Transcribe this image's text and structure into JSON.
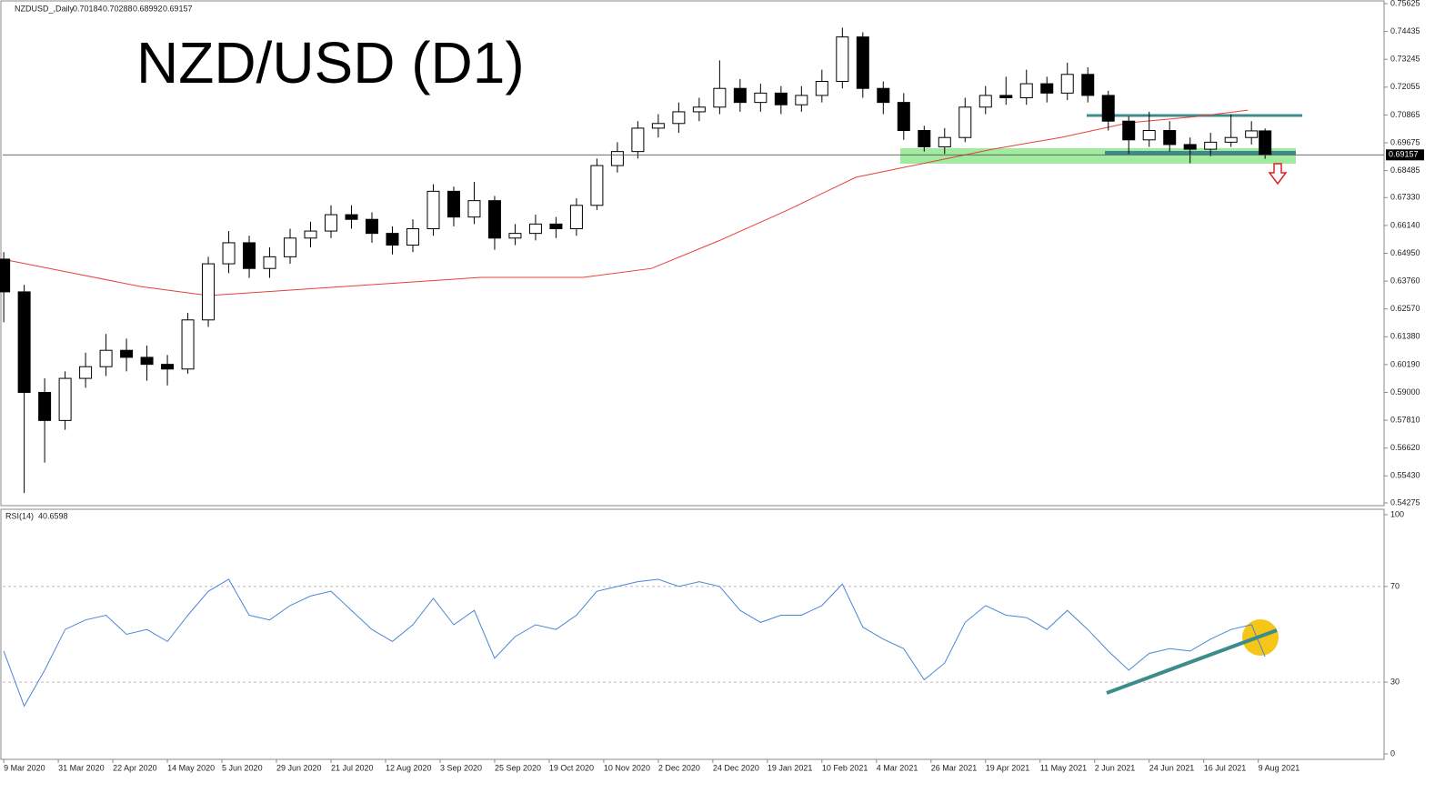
{
  "chart_data": [
    {
      "type": "candlestick",
      "title": "NZD/USD (D1)",
      "symbol_label": "NZDUSD_,Daily",
      "x": [
        0,
        6,
        12,
        18,
        24,
        30,
        36,
        42,
        48,
        54,
        60,
        66,
        72,
        78,
        84,
        90,
        96,
        102,
        108,
        114,
        120,
        126,
        132,
        138,
        144,
        150,
        156,
        162,
        168,
        174,
        180,
        186,
        192,
        198,
        204,
        210,
        216,
        222,
        228,
        234,
        240,
        246,
        252,
        258,
        264,
        270,
        276,
        282,
        288,
        294,
        300,
        306,
        312,
        318,
        324,
        330,
        336,
        342,
        348,
        354,
        360,
        366,
        370
      ],
      "open": [
        0.647,
        0.633,
        0.59,
        0.578,
        0.596,
        0.601,
        0.608,
        0.605,
        0.602,
        0.6,
        0.621,
        0.645,
        0.654,
        0.643,
        0.648,
        0.656,
        0.659,
        0.666,
        0.664,
        0.658,
        0.653,
        0.66,
        0.676,
        0.665,
        0.672,
        0.656,
        0.658,
        0.662,
        0.66,
        0.67,
        0.687,
        0.693,
        0.703,
        0.705,
        0.71,
        0.712,
        0.72,
        0.714,
        0.718,
        0.713,
        0.717,
        0.723,
        0.742,
        0.72,
        0.714,
        0.702,
        0.695,
        0.699,
        0.712,
        0.717,
        0.716,
        0.722,
        0.718,
        0.726,
        0.717,
        0.706,
        0.698,
        0.702,
        0.696,
        0.694,
        0.697,
        0.699,
        0.70184
      ],
      "high": [
        0.65,
        0.636,
        0.596,
        0.599,
        0.607,
        0.615,
        0.613,
        0.61,
        0.606,
        0.624,
        0.648,
        0.659,
        0.657,
        0.652,
        0.66,
        0.663,
        0.67,
        0.67,
        0.667,
        0.661,
        0.664,
        0.679,
        0.678,
        0.68,
        0.674,
        0.662,
        0.666,
        0.665,
        0.673,
        0.69,
        0.697,
        0.706,
        0.709,
        0.714,
        0.716,
        0.732,
        0.724,
        0.722,
        0.721,
        0.721,
        0.728,
        0.746,
        0.744,
        0.723,
        0.718,
        0.704,
        0.703,
        0.716,
        0.721,
        0.725,
        0.728,
        0.725,
        0.731,
        0.729,
        0.719,
        0.708,
        0.71,
        0.706,
        0.699,
        0.701,
        0.709,
        0.706,
        0.70288
      ],
      "low": [
        0.62,
        0.547,
        0.56,
        0.574,
        0.592,
        0.597,
        0.599,
        0.595,
        0.593,
        0.598,
        0.618,
        0.641,
        0.639,
        0.639,
        0.645,
        0.652,
        0.656,
        0.66,
        0.654,
        0.649,
        0.65,
        0.657,
        0.661,
        0.662,
        0.651,
        0.653,
        0.655,
        0.656,
        0.657,
        0.668,
        0.684,
        0.69,
        0.699,
        0.701,
        0.706,
        0.709,
        0.71,
        0.71,
        0.709,
        0.71,
        0.714,
        0.72,
        0.716,
        0.709,
        0.698,
        0.693,
        0.692,
        0.697,
        0.709,
        0.713,
        0.713,
        0.714,
        0.715,
        0.714,
        0.702,
        0.692,
        0.695,
        0.693,
        0.688,
        0.691,
        0.695,
        0.696,
        0.68992
      ],
      "close": [
        0.633,
        0.59,
        0.578,
        0.596,
        0.601,
        0.608,
        0.605,
        0.602,
        0.6,
        0.621,
        0.645,
        0.654,
        0.643,
        0.648,
        0.656,
        0.659,
        0.666,
        0.664,
        0.658,
        0.653,
        0.66,
        0.676,
        0.665,
        0.672,
        0.656,
        0.658,
        0.662,
        0.66,
        0.67,
        0.687,
        0.693,
        0.703,
        0.705,
        0.71,
        0.712,
        0.72,
        0.714,
        0.718,
        0.713,
        0.717,
        0.723,
        0.742,
        0.72,
        0.714,
        0.702,
        0.695,
        0.699,
        0.712,
        0.717,
        0.716,
        0.722,
        0.718,
        0.726,
        0.717,
        0.706,
        0.698,
        0.702,
        0.696,
        0.694,
        0.697,
        0.699,
        0.70184,
        0.69157
      ],
      "up_color": "#ffffff",
      "down_color": "#000000",
      "ma_line": {
        "color": "#e8403a",
        "x": [
          0,
          20,
          40,
          60,
          100,
          140,
          170,
          190,
          210,
          230,
          250,
          270,
          290,
          310,
          330,
          350,
          365
        ],
        "values": [
          0.6469,
          0.6411,
          0.6353,
          0.6314,
          0.6353,
          0.6392,
          0.6392,
          0.643,
          0.655,
          0.668,
          0.682,
          0.688,
          0.694,
          0.699,
          0.7053,
          0.708,
          0.7107
        ]
      },
      "xlim": [
        -0.3,
        404.9
      ],
      "ylim": [
        0.54275,
        0.75625
      ],
      "yticks": [
        0.75625,
        0.74435,
        0.73245,
        0.72055,
        0.70865,
        0.69675,
        0.68485,
        {
          "value": 0.6733,
          "label": "0.67330"
        },
        {
          "value": 0.6614,
          "label": "0.66140"
        },
        {
          "value": 0.6495,
          "label": "0.64950"
        },
        {
          "value": 0.6376,
          "label": "0.63760"
        },
        {
          "value": 0.6257,
          "label": "0.62570"
        },
        {
          "value": 0.6138,
          "label": "0.61380"
        },
        {
          "value": 0.6019,
          "label": "0.60190"
        },
        {
          "value": 0.59,
          "label": "0.59000"
        },
        {
          "value": 0.5781,
          "label": "0.57810"
        },
        {
          "value": 0.5662,
          "label": "0.56620"
        },
        {
          "value": 0.5543,
          "label": "0.55430"
        },
        0.54275
      ]
    },
    {
      "type": "line",
      "title": "RSI(14)",
      "last_value": 40.6598,
      "color": "#4a86d8",
      "x": [
        0,
        6,
        12,
        18,
        24,
        30,
        36,
        42,
        48,
        54,
        60,
        66,
        72,
        78,
        84,
        90,
        96,
        102,
        108,
        114,
        120,
        126,
        132,
        138,
        144,
        150,
        156,
        162,
        168,
        174,
        180,
        186,
        192,
        198,
        204,
        210,
        216,
        222,
        228,
        234,
        240,
        246,
        252,
        258,
        264,
        270,
        276,
        282,
        288,
        294,
        300,
        306,
        312,
        318,
        324,
        330,
        336,
        342,
        348,
        354,
        360,
        366,
        370
      ],
      "values": [
        43,
        20,
        35,
        52,
        56,
        58,
        50,
        52,
        47,
        58,
        68,
        73,
        58,
        56,
        62,
        66,
        68,
        60,
        52,
        47,
        54,
        65,
        54,
        60,
        40,
        49,
        54,
        52,
        58,
        68,
        70,
        72,
        73,
        70,
        72,
        70,
        60,
        55,
        58,
        58,
        62,
        71,
        53,
        48,
        44,
        31,
        38,
        55,
        62,
        58,
        57,
        52,
        60,
        52,
        43,
        35,
        42,
        44,
        43,
        48,
        52,
        54,
        40.66
      ],
      "xlim": [
        -0.3,
        404.9
      ],
      "ylim": [
        0,
        100
      ],
      "yticks": [
        0,
        30,
        70,
        100
      ],
      "xticks": [
        {
          "value": 0,
          "label": "9 Mar 2020"
        },
        {
          "value": 16,
          "label": "31 Mar 2020"
        },
        {
          "value": 32,
          "label": "22 Apr 2020"
        },
        {
          "value": 48,
          "label": "14 May 2020"
        },
        {
          "value": 64,
          "label": "5 Jun 2020"
        },
        {
          "value": 80,
          "label": "29 Jun 2020"
        },
        {
          "value": 96,
          "label": "21 Jul 2020"
        },
        {
          "value": 112,
          "label": "12 Aug 2020"
        },
        {
          "value": 128,
          "label": "3 Sep 2020"
        },
        {
          "value": 144,
          "label": "25 Sep 2020"
        },
        {
          "value": 160,
          "label": "19 Oct 2020"
        },
        {
          "value": 176,
          "label": "10 Nov 2020"
        },
        {
          "value": 192,
          "label": "2 Dec 2020"
        },
        {
          "value": 208,
          "label": "24 Dec 2020"
        },
        {
          "value": 224,
          "label": "19 Jan 2021"
        },
        {
          "value": 240,
          "label": "10 Feb 2021"
        },
        {
          "value": 256,
          "label": "4 Mar 2021"
        },
        {
          "value": 272,
          "label": "26 Mar 2021"
        },
        {
          "value": 288,
          "label": "19 Apr 2021"
        },
        {
          "value": 304,
          "label": "11 May 2021"
        },
        {
          "value": 320,
          "label": "2 Jun 2021"
        },
        {
          "value": 336,
          "label": "24 Jun 2021"
        },
        {
          "value": 352,
          "label": "16 Jul 2021"
        },
        {
          "value": 368,
          "label": "9 Aug 2021"
        }
      ]
    }
  ]
}
